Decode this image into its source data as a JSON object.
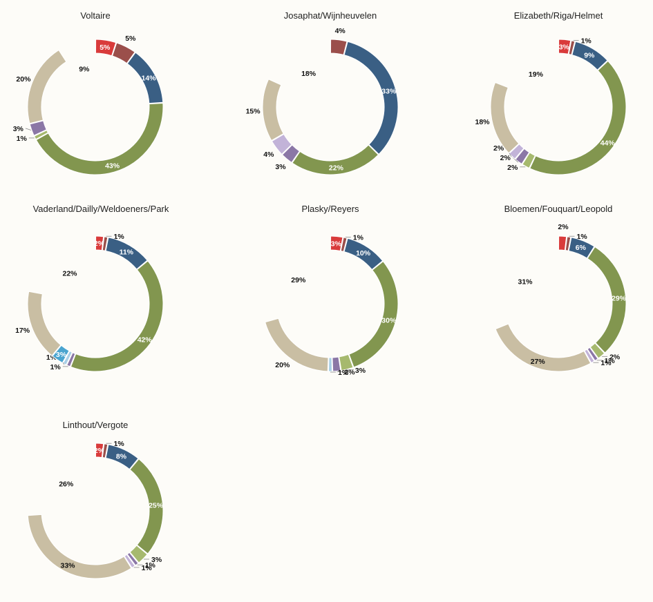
{
  "colors": {
    "background": "#fdfcf8",
    "red": "#d93b3b",
    "brown": "#9b4f4b",
    "blue": "#3a5f84",
    "green": "#82964f",
    "light_green": "#a6b96e",
    "purple": "#8b77a6",
    "lavender": "#c2b3d8",
    "light_blue": "#a9cfe6",
    "cyan": "#4aa4cf",
    "beige": "#c9bea3"
  },
  "chart_data": [
    {
      "type": "pie",
      "title": "Voltaire",
      "slices": [
        {
          "label": "5%",
          "value": 5,
          "color": "red",
          "label_pos": "inside"
        },
        {
          "label": "5%",
          "value": 5,
          "color": "brown",
          "label_pos": "outside"
        },
        {
          "label": "14%",
          "value": 14,
          "color": "blue",
          "label_pos": "inside"
        },
        {
          "label": "43%",
          "value": 43,
          "color": "green",
          "label_pos": "inside"
        },
        {
          "label": "1%",
          "value": 1,
          "color": "light_green",
          "label_pos": "leader"
        },
        {
          "label": "3%",
          "value": 3,
          "color": "purple",
          "label_pos": "leader"
        },
        {
          "label": "20%",
          "value": 20,
          "color": "beige",
          "label_pos": "outside"
        },
        {
          "label": "9%",
          "value": 9,
          "color": "none",
          "label_pos": "outside"
        }
      ]
    },
    {
      "type": "pie",
      "title": "Josaphat/Wijnheuvelen",
      "slices": [
        {
          "label": "4%",
          "value": 4,
          "color": "brown",
          "label_pos": "outside"
        },
        {
          "label": "33%",
          "value": 33,
          "color": "blue",
          "label_pos": "inside"
        },
        {
          "label": "22%",
          "value": 22,
          "color": "green",
          "label_pos": "inside"
        },
        {
          "label": "3%",
          "value": 3,
          "color": "purple",
          "label_pos": "outside"
        },
        {
          "label": "4%",
          "value": 4,
          "color": "lavender",
          "label_pos": "outside"
        },
        {
          "label": "15%",
          "value": 15,
          "color": "beige",
          "label_pos": "outside"
        },
        {
          "label": "18%",
          "value": 18,
          "color": "none",
          "label_pos": "outside"
        }
      ]
    },
    {
      "type": "pie",
      "title": "Elizabeth/Riga/Helmet",
      "slices": [
        {
          "label": "3%",
          "value": 3,
          "color": "red",
          "label_pos": "inside"
        },
        {
          "label": "1%",
          "value": 1,
          "color": "brown",
          "label_pos": "leader"
        },
        {
          "label": "9%",
          "value": 9,
          "color": "blue",
          "label_pos": "inside"
        },
        {
          "label": "44%",
          "value": 44,
          "color": "green",
          "label_pos": "inside"
        },
        {
          "label": "2%",
          "value": 2,
          "color": "light_green",
          "label_pos": "leader"
        },
        {
          "label": "2%",
          "value": 2,
          "color": "purple",
          "label_pos": "leader"
        },
        {
          "label": "2%",
          "value": 2,
          "color": "lavender",
          "label_pos": "leader"
        },
        {
          "label": "18%",
          "value": 18,
          "color": "beige",
          "label_pos": "outside"
        },
        {
          "label": "19%",
          "value": 19,
          "color": "none",
          "label_pos": "outside"
        }
      ]
    },
    {
      "type": "pie",
      "title": "Vaderland/Dailly/Weldoeners/Park",
      "slices": [
        {
          "label": "2%",
          "value": 2,
          "color": "red",
          "label_pos": "inside"
        },
        {
          "label": "1%",
          "value": 1,
          "color": "brown",
          "label_pos": "leader"
        },
        {
          "label": "11%",
          "value": 11,
          "color": "blue",
          "label_pos": "inside"
        },
        {
          "label": "42%",
          "value": 42,
          "color": "green",
          "label_pos": "inside"
        },
        {
          "label": "1%",
          "value": 1,
          "color": "purple",
          "label_pos": "leader"
        },
        {
          "label": "1%",
          "value": 1,
          "color": "light_blue",
          "label_pos": "leader"
        },
        {
          "label": "3%",
          "value": 3,
          "color": "cyan",
          "label_pos": "inside"
        },
        {
          "label": "17%",
          "value": 17,
          "color": "beige",
          "label_pos": "outside"
        },
        {
          "label": "22%",
          "value": 22,
          "color": "none",
          "label_pos": "outside"
        }
      ]
    },
    {
      "type": "pie",
      "title": "Plasky/Reyers",
      "slices": [
        {
          "label": "3%",
          "value": 3,
          "color": "red",
          "label_pos": "inside"
        },
        {
          "label": "1%",
          "value": 1,
          "color": "brown",
          "label_pos": "leader"
        },
        {
          "label": "10%",
          "value": 10,
          "color": "blue",
          "label_pos": "inside"
        },
        {
          "label": "30%",
          "value": 30,
          "color": "green",
          "label_pos": "inside"
        },
        {
          "label": "3%",
          "value": 3,
          "color": "light_green",
          "label_pos": "leader"
        },
        {
          "label": "2%",
          "value": 2,
          "color": "purple",
          "label_pos": "leader"
        },
        {
          "label": "1%",
          "value": 1,
          "color": "light_blue",
          "label_pos": "leader"
        },
        {
          "label": "20%",
          "value": 20,
          "color": "beige",
          "label_pos": "outside"
        },
        {
          "label": "29%",
          "value": 29,
          "color": "none",
          "label_pos": "outside"
        }
      ]
    },
    {
      "type": "pie",
      "title": "Bloemen/Fouquart/Leopold",
      "slices": [
        {
          "label": "2%",
          "value": 2,
          "color": "red",
          "label_pos": "outside"
        },
        {
          "label": "1%",
          "value": 1,
          "color": "brown",
          "label_pos": "leader"
        },
        {
          "label": "6%",
          "value": 6,
          "color": "blue",
          "label_pos": "inside"
        },
        {
          "label": "29%",
          "value": 29,
          "color": "green",
          "label_pos": "inside"
        },
        {
          "label": "2%",
          "value": 2,
          "color": "light_green",
          "label_pos": "leader"
        },
        {
          "label": "1%",
          "value": 1,
          "color": "purple",
          "label_pos": "leader"
        },
        {
          "label": "1%",
          "value": 1,
          "color": "lavender",
          "label_pos": "leader"
        },
        {
          "label": "27%",
          "value": 27,
          "color": "beige",
          "label_pos": "inside_dark"
        },
        {
          "label": "31%",
          "value": 31,
          "color": "none",
          "label_pos": "outside"
        }
      ]
    },
    {
      "type": "pie",
      "title": "Linthout/Vergote",
      "slices": [
        {
          "label": "2%",
          "value": 2,
          "color": "red",
          "label_pos": "inside"
        },
        {
          "label": "1%",
          "value": 1,
          "color": "brown",
          "label_pos": "leader"
        },
        {
          "label": "8%",
          "value": 8,
          "color": "blue",
          "label_pos": "inside"
        },
        {
          "label": "25%",
          "value": 25,
          "color": "green",
          "label_pos": "inside"
        },
        {
          "label": "3%",
          "value": 3,
          "color": "light_green",
          "label_pos": "leader"
        },
        {
          "label": "1%",
          "value": 1,
          "color": "purple",
          "label_pos": "leader"
        },
        {
          "label": "1%",
          "value": 1,
          "color": "lavender",
          "label_pos": "leader"
        },
        {
          "label": "33%",
          "value": 33,
          "color": "beige",
          "label_pos": "inside_dark"
        },
        {
          "label": "26%",
          "value": 26,
          "color": "none",
          "label_pos": "outside"
        }
      ]
    }
  ]
}
